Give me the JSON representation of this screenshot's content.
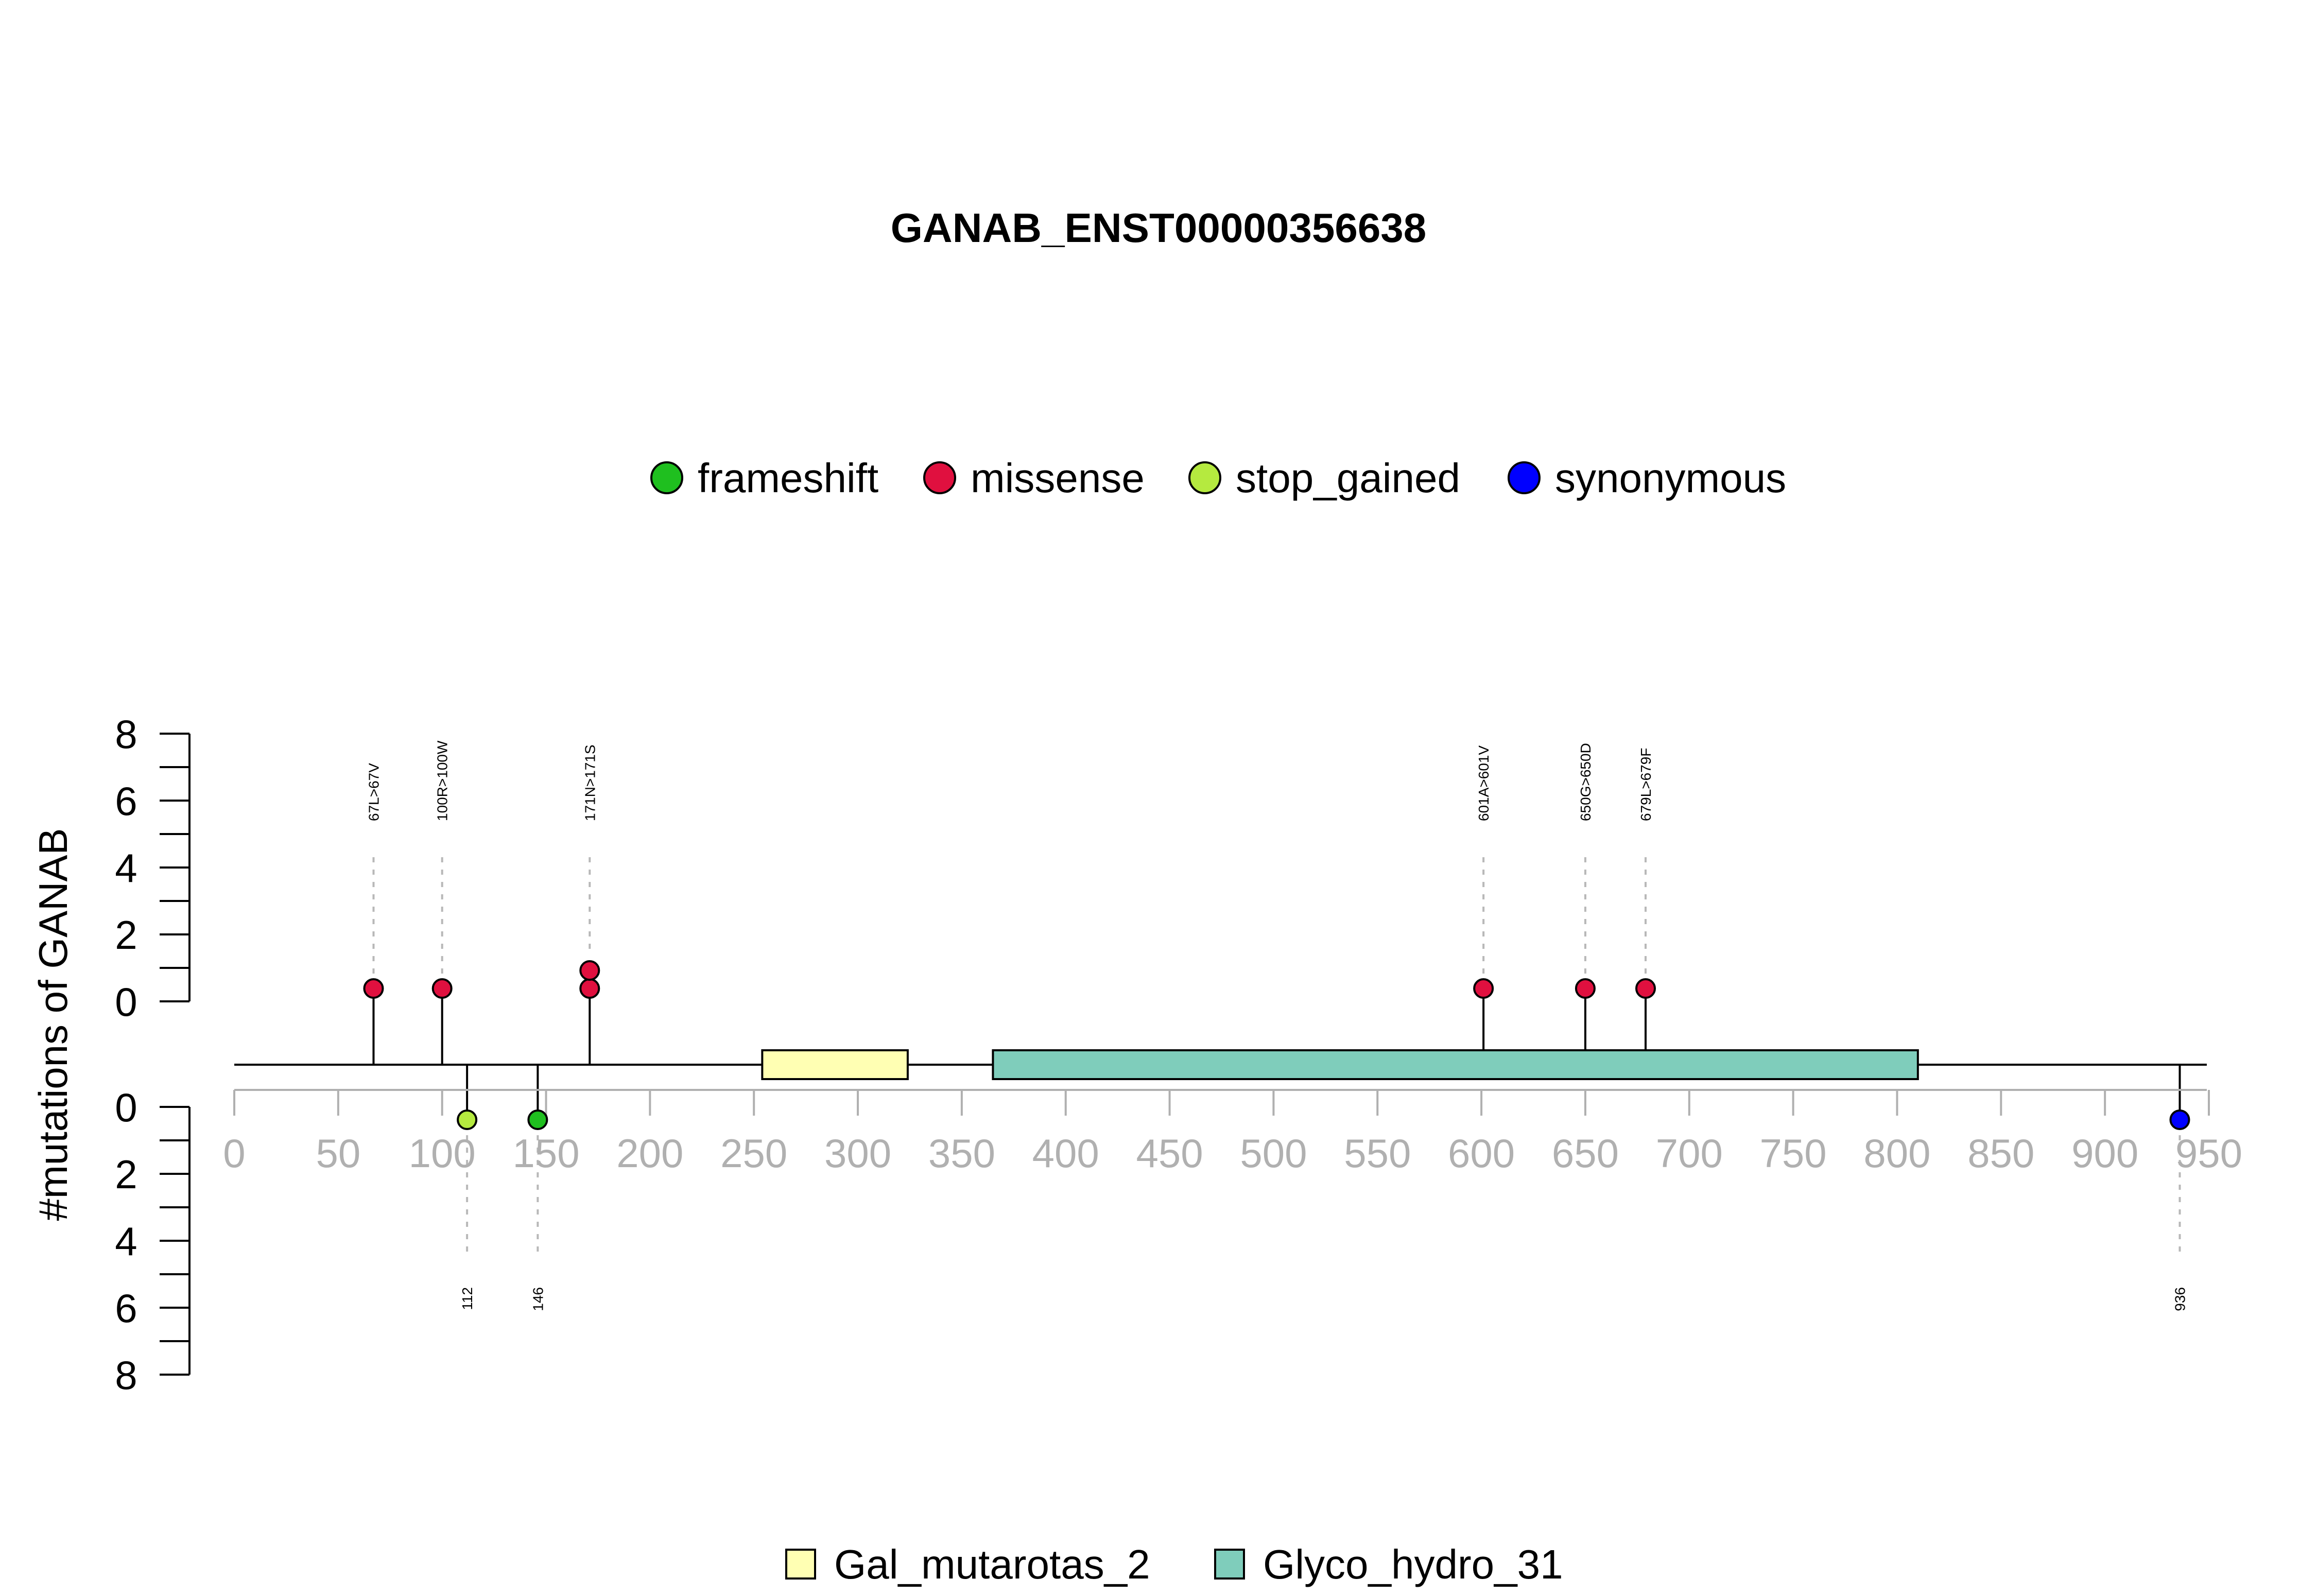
{
  "chart_data": {
    "type": "lollipop",
    "title": "GANAB_ENST00000356638",
    "ylabel": "#mutations of GANAB",
    "protein_length": 944,
    "x_ticks": [
      0,
      50,
      100,
      150,
      200,
      250,
      300,
      350,
      400,
      450,
      500,
      550,
      600,
      650,
      700,
      750,
      800,
      850,
      900,
      950
    ],
    "xlim": [
      0,
      950
    ],
    "ylim": [
      0,
      8
    ],
    "y_ticks": [
      0,
      2,
      4,
      6,
      8
    ],
    "mutation_types": [
      {
        "name": "frameshift",
        "color": "#1fbf1f"
      },
      {
        "name": "missense",
        "color": "#e0103f"
      },
      {
        "name": "stop_gained",
        "color": "#b5ea3f"
      },
      {
        "name": "synonymous",
        "color": "#0000ff"
      }
    ],
    "mutations_top": [
      {
        "position": 67,
        "label": "67L>67V",
        "type": "missense",
        "count": 1
      },
      {
        "position": 100,
        "label": "100R>100W",
        "type": "missense",
        "count": 1
      },
      {
        "position": 171,
        "label": "171N>171S",
        "type": "missense",
        "count": 2
      },
      {
        "position": 601,
        "label": "601A>601V",
        "type": "missense",
        "count": 1
      },
      {
        "position": 650,
        "label": "650G>650D",
        "type": "missense",
        "count": 1
      },
      {
        "position": 679,
        "label": "679L>679F",
        "type": "missense",
        "count": 1
      }
    ],
    "mutations_bottom": [
      {
        "position": 112,
        "label": "112",
        "type": "stop_gained",
        "count": 1
      },
      {
        "position": 146,
        "label": "146",
        "type": "frameshift",
        "count": 1
      },
      {
        "position": 936,
        "label": "936",
        "type": "synonymous",
        "count": 1
      }
    ],
    "domains": [
      {
        "name": "Gal_mutarotas_2",
        "start": 254,
        "end": 324,
        "color": "#ffffb3"
      },
      {
        "name": "Glyco_hydro_31",
        "start": 365,
        "end": 810,
        "color": "#7fcdbb"
      }
    ]
  }
}
